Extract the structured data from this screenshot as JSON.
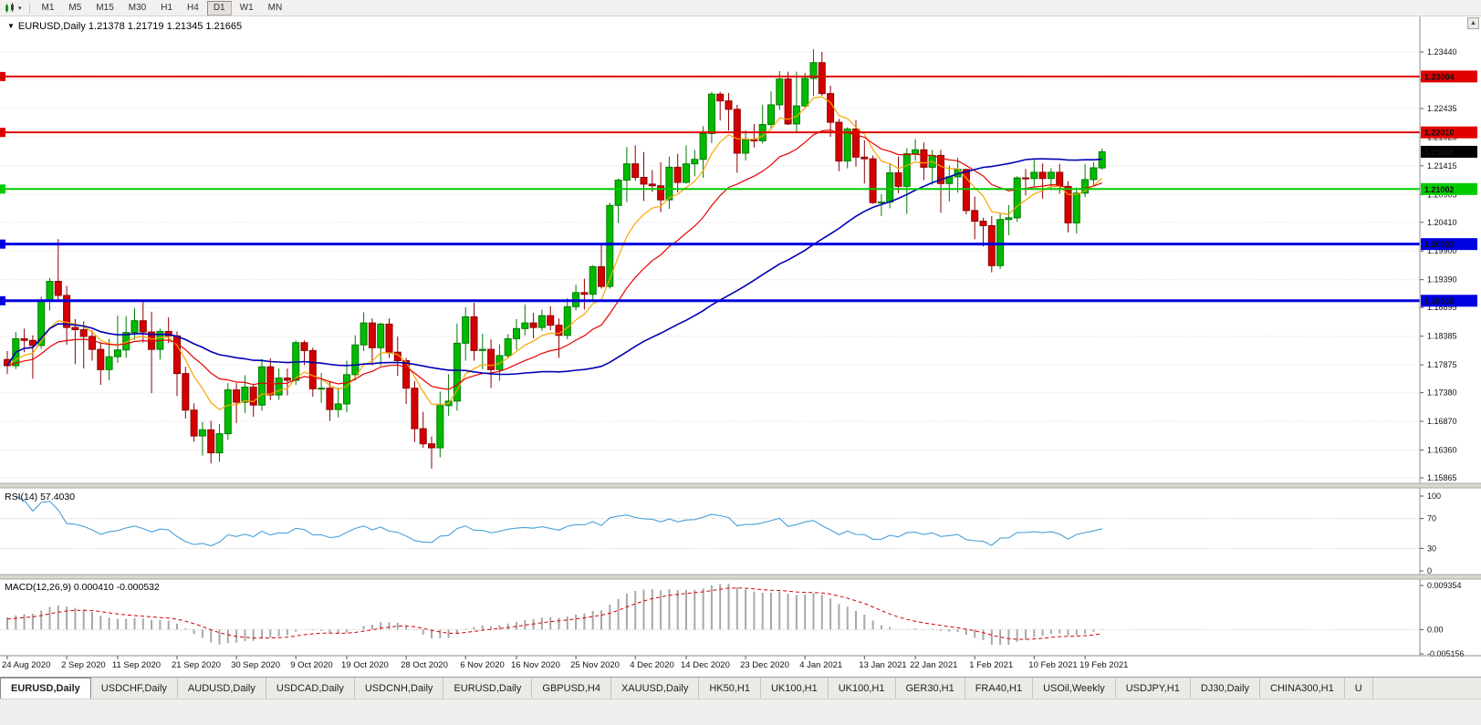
{
  "toolbar": {
    "timeframes": [
      "M1",
      "M5",
      "M15",
      "M30",
      "H1",
      "H4",
      "D1",
      "W1",
      "MN"
    ],
    "active_timeframe": "D1"
  },
  "icons": {
    "caret_down": "▾",
    "scroll_up": "▲",
    "marker_down": "▼"
  },
  "chart": {
    "header": "EURUSD,Daily 1.21378 1.21719 1.21345 1.21665",
    "rsi_label": "RSI(14) 57.4030",
    "macd_label": "MACD(12,26,9) 0.000410 -0.000532"
  },
  "chart_data": {
    "type": "candlestick",
    "symbol": "EURUSD",
    "timeframe": "Daily",
    "current_bar": {
      "open": "1.21378",
      "high": "1.21719",
      "low": "1.21345",
      "close": "1.21665"
    },
    "price_scale": {
      "top": 1.2344,
      "bottom": 1.15865
    },
    "price_ticks": [
      "1.23440",
      "1.22950",
      "1.22435",
      "1.21925",
      "1.21415",
      "1.20905",
      "1.20410",
      "1.19900",
      "1.19390",
      "1.18895",
      "1.18385",
      "1.17875",
      "1.17380",
      "1.16870",
      "1.16360",
      "1.15865"
    ],
    "colors": {
      "bull": "#00bb00",
      "bull_border": "#007a00",
      "bear": "#d40000",
      "bear_border": "#8d0000"
    },
    "moving_averages": [
      {
        "name": "fast",
        "period": 8,
        "method": "ema",
        "color": "#f7a600",
        "width": 1.2
      },
      {
        "name": "medium",
        "period": 20,
        "method": "ema",
        "color": "#e60000",
        "width": 1.2
      },
      {
        "name": "slow",
        "period": 50,
        "method": "sma",
        "color": "#0000b4",
        "width": 1.6
      }
    ],
    "hlines": [
      {
        "value": 1.23004,
        "label": "1.23004",
        "color": "#e00000",
        "width": 2
      },
      {
        "value": 1.2201,
        "label": "1.22010",
        "color": "#e00000",
        "width": 2
      },
      {
        "value": 1.21002,
        "label": "1.21002",
        "color": "#00cc00",
        "width": 2
      },
      {
        "value": 1.20023,
        "label": "1.20023",
        "color": "#0000e0",
        "width": 3
      },
      {
        "value": 1.19015,
        "label": "1.19015",
        "color": "#0000e0",
        "width": 3
      }
    ],
    "current_price": {
      "value": 1.21665,
      "label": "1.21665",
      "bg": "#000000"
    },
    "rsi": {
      "period": 14,
      "current": "57.4030",
      "levels": [
        100,
        70,
        30,
        0
      ],
      "color": "#4aa0d8"
    },
    "macd": {
      "fast": 12,
      "slow": 26,
      "signal": 9,
      "main": "0.000410",
      "signal_value": "-0.000532",
      "scale_top": 0.009354,
      "scale_bottom": -0.005156,
      "axis_labels": [
        "0.009354",
        "0.00",
        "-0.005156"
      ],
      "hist_color": "#a8a8a8",
      "signal_color": "#d40000"
    },
    "date_labels": [
      "24 Aug 2020",
      "2 Sep 2020",
      "11 Sep 2020",
      "21 Sep 2020",
      "30 Sep 2020",
      "9 Oct 2020",
      "19 Oct 2020",
      "28 Oct 2020",
      "6 Nov 2020",
      "16 Nov 2020",
      "25 Nov 2020",
      "4 Dec 2020",
      "14 Dec 2020",
      "23 Dec 2020",
      "4 Jan 2021",
      "13 Jan 2021",
      "22 Jan 2021",
      "1 Feb 2021",
      "10 Feb 2021",
      "19 Feb 2021"
    ],
    "date_label_indices": [
      0,
      7,
      13,
      20,
      27,
      34,
      40,
      47,
      54,
      60,
      67,
      74,
      80,
      87,
      94,
      101,
      107,
      114,
      121,
      127
    ],
    "ohlc": [
      [
        1.1797,
        1.1812,
        1.1771,
        1.1786
      ],
      [
        1.1786,
        1.1846,
        1.178,
        1.1834
      ],
      [
        1.1834,
        1.1852,
        1.181,
        1.1831
      ],
      [
        1.1831,
        1.184,
        1.1763,
        1.1822
      ],
      [
        1.1822,
        1.1909,
        1.1816,
        1.1903
      ],
      [
        1.1903,
        1.1942,
        1.1884,
        1.1936
      ],
      [
        1.1936,
        1.2011,
        1.1901,
        1.1911
      ],
      [
        1.1911,
        1.1928,
        1.1823,
        1.1854
      ],
      [
        1.1854,
        1.1869,
        1.1789,
        1.185
      ],
      [
        1.185,
        1.1865,
        1.1781,
        1.1838
      ],
      [
        1.1838,
        1.1849,
        1.1795,
        1.1815
      ],
      [
        1.1815,
        1.1828,
        1.1752,
        1.1779
      ],
      [
        1.1779,
        1.1834,
        1.176,
        1.1802
      ],
      [
        1.1802,
        1.1875,
        1.1791,
        1.1814
      ],
      [
        1.1814,
        1.1874,
        1.18,
        1.1845
      ],
      [
        1.1845,
        1.1888,
        1.1832,
        1.1866
      ],
      [
        1.1866,
        1.19,
        1.1827,
        1.1846
      ],
      [
        1.1846,
        1.1882,
        1.1737,
        1.1815
      ],
      [
        1.1815,
        1.1852,
        1.1797,
        1.1847
      ],
      [
        1.1847,
        1.1872,
        1.1826,
        1.1839
      ],
      [
        1.1839,
        1.1847,
        1.1732,
        1.1772
      ],
      [
        1.1772,
        1.1784,
        1.1692,
        1.1707
      ],
      [
        1.1707,
        1.1719,
        1.1651,
        1.1661
      ],
      [
        1.1661,
        1.1686,
        1.1626,
        1.1672
      ],
      [
        1.1672,
        1.1688,
        1.1612,
        1.1631
      ],
      [
        1.1631,
        1.1682,
        1.1615,
        1.1665
      ],
      [
        1.1665,
        1.1755,
        1.1654,
        1.1743
      ],
      [
        1.1743,
        1.1755,
        1.1684,
        1.1721
      ],
      [
        1.1721,
        1.1769,
        1.1702,
        1.1748
      ],
      [
        1.1748,
        1.1752,
        1.1695,
        1.1716
      ],
      [
        1.1716,
        1.1798,
        1.1706,
        1.1784
      ],
      [
        1.1784,
        1.1799,
        1.1725,
        1.1734
      ],
      [
        1.1734,
        1.1781,
        1.1725,
        1.1764
      ],
      [
        1.1764,
        1.1781,
        1.1733,
        1.176
      ],
      [
        1.176,
        1.1831,
        1.1752,
        1.1827
      ],
      [
        1.1827,
        1.1831,
        1.1787,
        1.1813
      ],
      [
        1.1813,
        1.1818,
        1.1731,
        1.1745
      ],
      [
        1.1745,
        1.1773,
        1.172,
        1.1746
      ],
      [
        1.1746,
        1.1758,
        1.1688,
        1.1708
      ],
      [
        1.1708,
        1.1747,
        1.1694,
        1.1718
      ],
      [
        1.1718,
        1.1795,
        1.1703,
        1.177
      ],
      [
        1.177,
        1.184,
        1.176,
        1.1823
      ],
      [
        1.1823,
        1.1881,
        1.1812,
        1.1862
      ],
      [
        1.1862,
        1.187,
        1.1787,
        1.1818
      ],
      [
        1.1818,
        1.1863,
        1.1786,
        1.186
      ],
      [
        1.186,
        1.187,
        1.18,
        1.181
      ],
      [
        1.181,
        1.1838,
        1.1768,
        1.1795
      ],
      [
        1.1795,
        1.18,
        1.1718,
        1.1746
      ],
      [
        1.1746,
        1.1759,
        1.165,
        1.1674
      ],
      [
        1.1674,
        1.1704,
        1.164,
        1.1647
      ],
      [
        1.1647,
        1.166,
        1.1603,
        1.164
      ],
      [
        1.164,
        1.174,
        1.1623,
        1.1715
      ],
      [
        1.1715,
        1.1771,
        1.1697,
        1.1723
      ],
      [
        1.1723,
        1.1861,
        1.1706,
        1.1826
      ],
      [
        1.1826,
        1.189,
        1.1795,
        1.1873
      ],
      [
        1.1873,
        1.1898,
        1.1795,
        1.1813
      ],
      [
        1.1813,
        1.1843,
        1.178,
        1.1815
      ],
      [
        1.1815,
        1.1833,
        1.1746,
        1.1779
      ],
      [
        1.1779,
        1.1824,
        1.1759,
        1.1804
      ],
      [
        1.1804,
        1.1842,
        1.1799,
        1.1834
      ],
      [
        1.1834,
        1.1869,
        1.1814,
        1.1852
      ],
      [
        1.1852,
        1.1895,
        1.184,
        1.1862
      ],
      [
        1.1862,
        1.188,
        1.1835,
        1.1854
      ],
      [
        1.1854,
        1.1886,
        1.1848,
        1.1875
      ],
      [
        1.1875,
        1.1892,
        1.1849,
        1.1858
      ],
      [
        1.1858,
        1.187,
        1.18,
        1.184
      ],
      [
        1.184,
        1.1906,
        1.1833,
        1.1891
      ],
      [
        1.1891,
        1.193,
        1.1884,
        1.1916
      ],
      [
        1.1916,
        1.1941,
        1.1886,
        1.1913
      ],
      [
        1.1913,
        1.1965,
        1.1901,
        1.1962
      ],
      [
        1.1962,
        1.2003,
        1.1923,
        1.1927
      ],
      [
        1.1927,
        1.2076,
        1.1923,
        1.2071
      ],
      [
        1.2071,
        1.2119,
        1.204,
        1.2116
      ],
      [
        1.2116,
        1.2175,
        1.2077,
        1.2145
      ],
      [
        1.2145,
        1.2178,
        1.2115,
        1.2121
      ],
      [
        1.2121,
        1.2166,
        1.2079,
        1.2109
      ],
      [
        1.2109,
        1.2134,
        1.2095,
        1.2106
      ],
      [
        1.2106,
        1.2148,
        1.2059,
        1.2081
      ],
      [
        1.2081,
        1.2158,
        1.2065,
        1.2139
      ],
      [
        1.2139,
        1.2163,
        1.2094,
        1.2112
      ],
      [
        1.2112,
        1.2178,
        1.211,
        1.2145
      ],
      [
        1.2145,
        1.217,
        1.2123,
        1.2153
      ],
      [
        1.2153,
        1.2212,
        1.212,
        1.2199
      ],
      [
        1.2199,
        1.2273,
        1.2182,
        1.2269
      ],
      [
        1.2269,
        1.2273,
        1.2222,
        1.2257
      ],
      [
        1.2257,
        1.2271,
        1.2204,
        1.2242
      ],
      [
        1.2242,
        1.225,
        1.2129,
        1.2164
      ],
      [
        1.2164,
        1.2205,
        1.2151,
        1.2188
      ],
      [
        1.2188,
        1.2216,
        1.2174,
        1.2186
      ],
      [
        1.2186,
        1.225,
        1.2181,
        1.2215
      ],
      [
        1.2215,
        1.2274,
        1.2209,
        1.225
      ],
      [
        1.225,
        1.231,
        1.2241,
        1.2296
      ],
      [
        1.2296,
        1.2309,
        1.2214,
        1.2216
      ],
      [
        1.2216,
        1.2309,
        1.22,
        1.2248
      ],
      [
        1.2248,
        1.2307,
        1.2245,
        1.2297
      ],
      [
        1.2297,
        1.2349,
        1.2266,
        1.2325
      ],
      [
        1.2325,
        1.2344,
        1.2266,
        1.227
      ],
      [
        1.227,
        1.2284,
        1.2193,
        1.2219
      ],
      [
        1.2219,
        1.2225,
        1.2132,
        1.215
      ],
      [
        1.215,
        1.221,
        1.2137,
        1.2207
      ],
      [
        1.2207,
        1.2223,
        1.214,
        1.2157
      ],
      [
        1.2157,
        1.2187,
        1.211,
        1.2154
      ],
      [
        1.2154,
        1.216,
        1.2074,
        1.2076
      ],
      [
        1.2076,
        1.2091,
        1.2052,
        1.2077
      ],
      [
        1.2077,
        1.2145,
        1.2066,
        1.2129
      ],
      [
        1.2129,
        1.2158,
        1.2093,
        1.2105
      ],
      [
        1.2105,
        1.2173,
        1.2056,
        1.2163
      ],
      [
        1.2163,
        1.2189,
        1.2151,
        1.217
      ],
      [
        1.217,
        1.2183,
        1.2116,
        1.2139
      ],
      [
        1.2139,
        1.217,
        1.2108,
        1.216
      ],
      [
        1.216,
        1.217,
        1.2058,
        1.211
      ],
      [
        1.211,
        1.2142,
        1.2078,
        1.2122
      ],
      [
        1.2122,
        1.2156,
        1.2094,
        1.2135
      ],
      [
        1.2135,
        1.2136,
        1.2055,
        1.2062
      ],
      [
        1.2062,
        1.2087,
        1.2011,
        1.2043
      ],
      [
        1.2043,
        1.2049,
        1.1998,
        1.2035
      ],
      [
        1.2035,
        1.2052,
        1.1952,
        1.1964
      ],
      [
        1.1964,
        1.2056,
        1.1958,
        1.2046
      ],
      [
        1.2046,
        1.2072,
        1.2018,
        1.2049
      ],
      [
        1.2049,
        1.2123,
        1.2042,
        1.212
      ],
      [
        1.212,
        1.2136,
        1.2089,
        1.2119
      ],
      [
        1.2119,
        1.2152,
        1.2103,
        1.213
      ],
      [
        1.213,
        1.2146,
        1.2083,
        1.2119
      ],
      [
        1.2119,
        1.2137,
        1.2098,
        1.213
      ],
      [
        1.213,
        1.2145,
        1.2092,
        1.2105
      ],
      [
        1.2105,
        1.2114,
        1.2023,
        1.204
      ],
      [
        1.204,
        1.2103,
        1.2021,
        1.2093
      ],
      [
        1.2093,
        1.2145,
        1.2086,
        1.2117
      ],
      [
        1.2117,
        1.2148,
        1.2107,
        1.2138
      ],
      [
        1.21378,
        1.21719,
        1.21345,
        1.21665
      ]
    ]
  },
  "tabs": [
    {
      "label": "EURUSD,Daily",
      "active": true
    },
    {
      "label": "USDCHF,Daily"
    },
    {
      "label": "AUDUSD,Daily"
    },
    {
      "label": "USDCAD,Daily"
    },
    {
      "label": "USDCNH,Daily"
    },
    {
      "label": "EURUSD,Daily"
    },
    {
      "label": "GBPUSD,H4"
    },
    {
      "label": "XAUUSD,Daily"
    },
    {
      "label": "HK50,H1"
    },
    {
      "label": "UK100,H1"
    },
    {
      "label": "UK100,H1"
    },
    {
      "label": "GER30,H1"
    },
    {
      "label": "FRA40,H1"
    },
    {
      "label": "USOil,Weekly"
    },
    {
      "label": "USDJPY,H1"
    },
    {
      "label": "DJ30,Daily"
    },
    {
      "label": "CHINA300,H1"
    },
    {
      "label": "U",
      "partial": true
    }
  ]
}
